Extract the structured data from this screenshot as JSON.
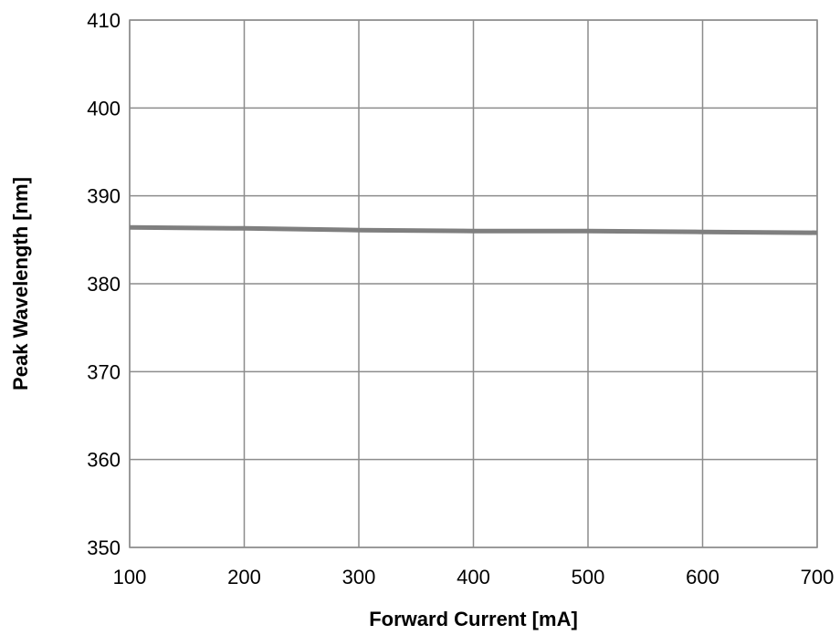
{
  "chart_data": {
    "type": "line",
    "title": "",
    "xlabel": "Forward Current [mA]",
    "ylabel": "Peak Wavelength [nm]",
    "xlim": [
      100,
      700
    ],
    "ylim": [
      350,
      410
    ],
    "x_ticks": [
      100,
      200,
      300,
      400,
      500,
      600,
      700
    ],
    "y_ticks": [
      350,
      360,
      370,
      380,
      390,
      400,
      410
    ],
    "grid": true,
    "legend": "none",
    "series": [
      {
        "color": "#7f7f7f",
        "x": [
          100,
          200,
          300,
          400,
          500,
          600,
          700
        ],
        "y": [
          386.4,
          386.3,
          386.1,
          386.0,
          386.0,
          385.9,
          385.8
        ]
      }
    ]
  }
}
